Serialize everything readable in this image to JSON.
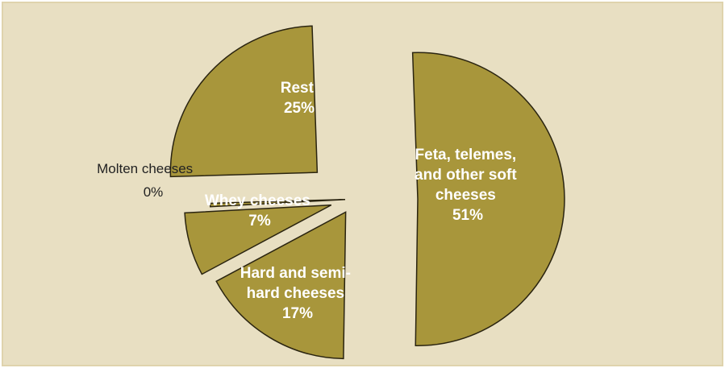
{
  "colors": {
    "background": "#e8dfc2",
    "border": "#dfd3ad",
    "slice_fill": "#a8963b",
    "slice_stroke": "#2a2410",
    "label_inside": "#ffffff",
    "label_outside": "#222222"
  },
  "chart_data": {
    "type": "pie",
    "exploded": true,
    "legend": "none",
    "slices": [
      {
        "key": "feta",
        "lines": [
          "Feta, telemes,",
          "and other soft",
          "cheeses"
        ],
        "percent_label": "51%",
        "value": 51
      },
      {
        "key": "hard",
        "lines": [
          "Hard and semi-",
          "hard cheeses"
        ],
        "percent_label": "17%",
        "value": 17
      },
      {
        "key": "whey",
        "lines": [
          "Whey cheeses"
        ],
        "percent_label": "7%",
        "value": 7
      },
      {
        "key": "molten",
        "lines": [
          "Molten cheeses"
        ],
        "percent_label": "0%",
        "value": 0.4
      },
      {
        "key": "rest",
        "lines": [
          "Rest"
        ],
        "percent_label": "25%",
        "value": 25
      }
    ]
  }
}
